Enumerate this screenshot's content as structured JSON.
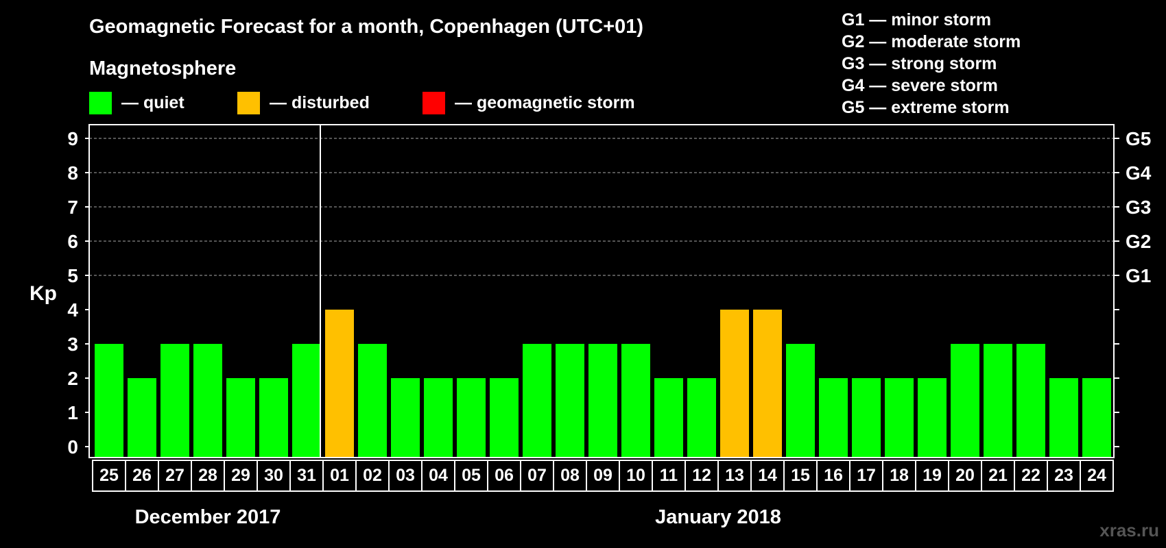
{
  "chart_data": {
    "type": "bar",
    "title": "Geomagnetic Forecast for a month, Copenhagen (UTC+01)",
    "subtitle": "Magnetosphere",
    "ylabel": "Kp",
    "ylim": [
      0,
      9
    ],
    "yticks": [
      "0",
      "1",
      "2",
      "3",
      "4",
      "5",
      "6",
      "7",
      "8",
      "9"
    ],
    "right_axis": [
      {
        "kp": 5,
        "label": "G1"
      },
      {
        "kp": 6,
        "label": "G2"
      },
      {
        "kp": 7,
        "label": "G3"
      },
      {
        "kp": 8,
        "label": "G4"
      },
      {
        "kp": 9,
        "label": "G5"
      }
    ],
    "legend": [
      {
        "label": "— quiet",
        "color": "#00ff00"
      },
      {
        "label": "— disturbed",
        "color": "#ffc000"
      },
      {
        "label": "— geomagnetic storm",
        "color": "#ff0000"
      }
    ],
    "storm_scale": [
      "G1 — minor storm",
      "G2 — moderate storm",
      "G3 — strong storm",
      "G4 — severe storm",
      "G5 — extreme storm"
    ],
    "categories": [
      "25",
      "26",
      "27",
      "28",
      "29",
      "30",
      "31",
      "01",
      "02",
      "03",
      "04",
      "05",
      "06",
      "07",
      "08",
      "09",
      "10",
      "11",
      "12",
      "13",
      "14",
      "15",
      "16",
      "17",
      "18",
      "19",
      "20",
      "21",
      "22",
      "23",
      "24"
    ],
    "values": [
      3,
      2,
      3,
      3,
      2,
      2,
      3,
      4,
      3,
      2,
      2,
      2,
      2,
      3,
      3,
      3,
      3,
      2,
      2,
      4,
      4,
      3,
      2,
      2,
      2,
      2,
      3,
      3,
      3,
      2,
      2
    ],
    "status": [
      "quiet",
      "quiet",
      "quiet",
      "quiet",
      "quiet",
      "quiet",
      "quiet",
      "disturbed",
      "quiet",
      "quiet",
      "quiet",
      "quiet",
      "quiet",
      "quiet",
      "quiet",
      "quiet",
      "quiet",
      "quiet",
      "quiet",
      "disturbed",
      "disturbed",
      "quiet",
      "quiet",
      "quiet",
      "quiet",
      "quiet",
      "quiet",
      "quiet",
      "quiet",
      "quiet",
      "quiet"
    ],
    "months": [
      {
        "label": "December 2017",
        "start": 0,
        "end": 6
      },
      {
        "label": "January 2018",
        "start": 7,
        "end": 30
      }
    ],
    "colors": {
      "quiet": "#00ff00",
      "disturbed": "#ffc000",
      "storm": "#ff0000",
      "background": "#000000",
      "foreground": "#ffffff",
      "grid": "#aaaaaa"
    },
    "grid": true
  },
  "watermark": "xras.ru"
}
